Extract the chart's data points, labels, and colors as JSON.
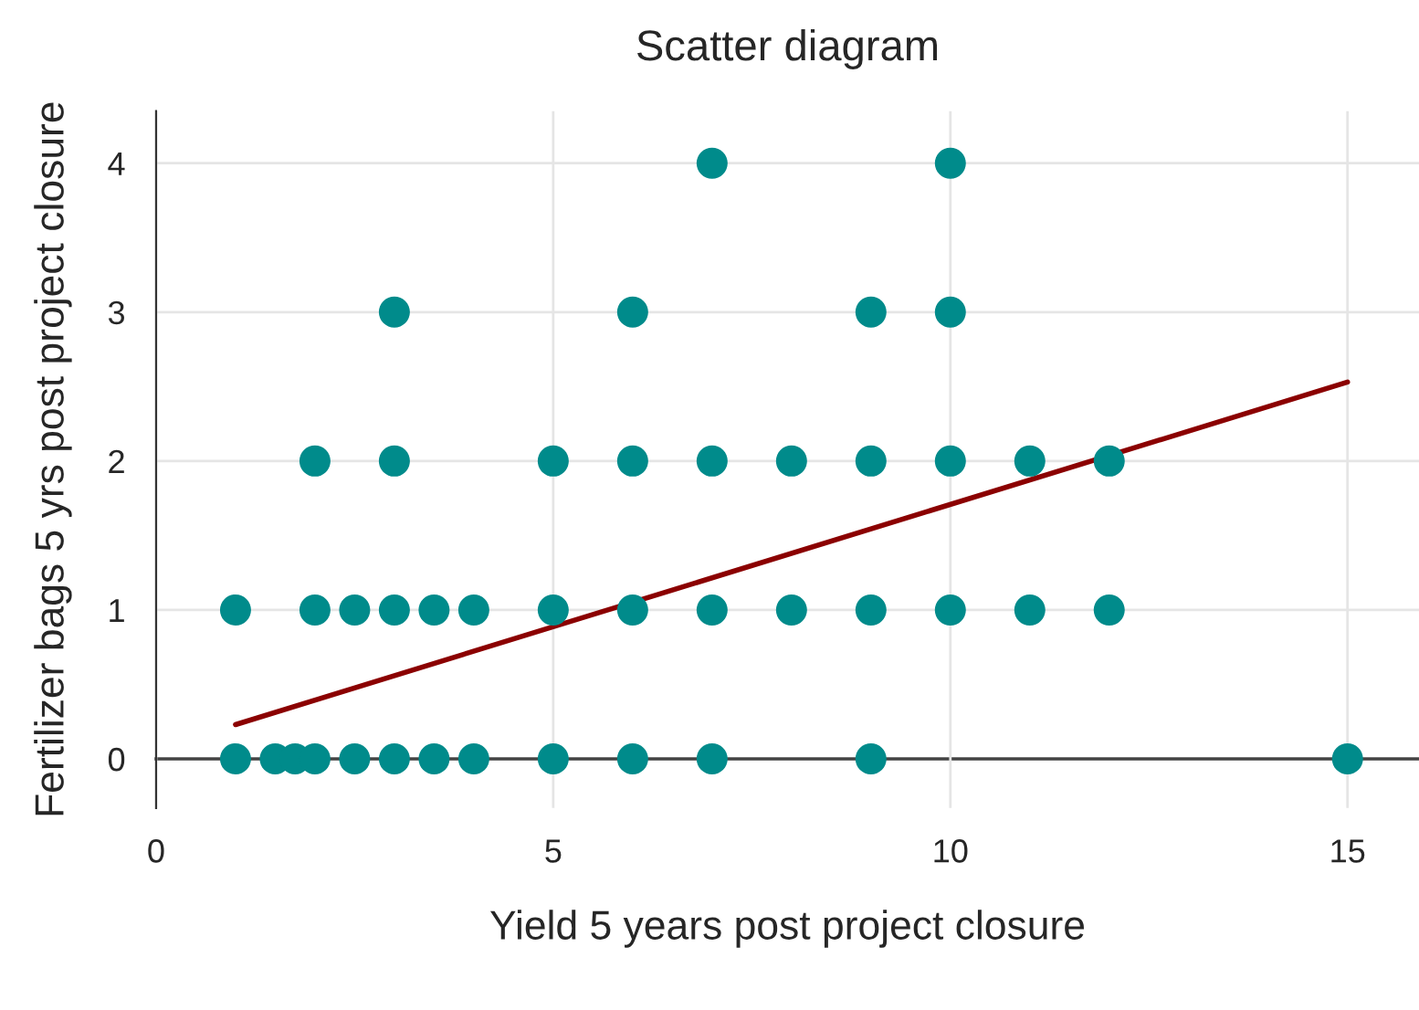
{
  "chart_data": {
    "type": "scatter",
    "title": "Scatter diagram",
    "xlabel": "Yield 5 years post project closure",
    "ylabel": "Fertilizer bags 5 yrs post project closure",
    "xlim": [
      0,
      15.9
    ],
    "ylim": [
      -0.33,
      4.35
    ],
    "xticks": [
      0,
      5,
      10,
      15
    ],
    "yticks": [
      0,
      1,
      2,
      3,
      4
    ],
    "grid": true,
    "series": [
      {
        "marker": "circle",
        "color": "#008b8b",
        "x": [
          1,
          1.5,
          1.75,
          2,
          2.5,
          3,
          3.5,
          4,
          5,
          6,
          7,
          9,
          15,
          1,
          2,
          2.5,
          3,
          3.5,
          4,
          5,
          6,
          7,
          8,
          9,
          10,
          11,
          12,
          2,
          3,
          5,
          6,
          7,
          8,
          9,
          10,
          11,
          12,
          3,
          6,
          9,
          10,
          7,
          10
        ],
        "values": [
          0,
          0,
          0,
          0,
          0,
          0,
          0,
          0,
          0,
          0,
          0,
          0,
          0,
          1,
          1,
          1,
          1,
          1,
          1,
          1,
          1,
          1,
          1,
          1,
          1,
          1,
          1,
          2,
          2,
          2,
          2,
          2,
          2,
          2,
          2,
          2,
          2,
          3,
          3,
          3,
          3,
          4,
          4
        ]
      },
      {
        "type": "line",
        "color": "#8b0000",
        "x": [
          1,
          15
        ],
        "values": [
          0.23,
          2.53
        ]
      }
    ]
  }
}
